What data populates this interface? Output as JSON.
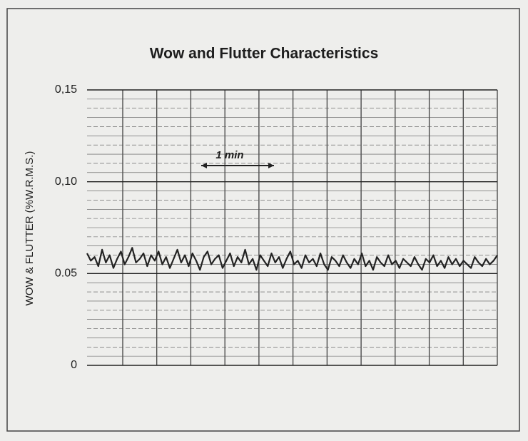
{
  "chart_data": {
    "type": "line",
    "title": "Wow and Flutter Characteristics",
    "y_label": "WOW & FLUTTER (%W.R.M.S.)",
    "annotation": "1 min",
    "color": "#222222",
    "ylim": [
      0,
      0.15
    ],
    "yticks": [
      0,
      {
        "value": 0.05,
        "label": "0.05"
      },
      {
        "value": 0.1,
        "label": "0,10"
      },
      {
        "value": 0.15,
        "label": "0,15"
      }
    ],
    "grid": true,
    "values": [
      0.061,
      0.057,
      0.059,
      0.054,
      0.063,
      0.056,
      0.06,
      0.053,
      0.058,
      0.062,
      0.055,
      0.059,
      0.064,
      0.056,
      0.058,
      0.061,
      0.054,
      0.06,
      0.057,
      0.062,
      0.055,
      0.059,
      0.053,
      0.058,
      0.063,
      0.056,
      0.06,
      0.054,
      0.061,
      0.057,
      0.052,
      0.059,
      0.062,
      0.055,
      0.058,
      0.06,
      0.053,
      0.057,
      0.061,
      0.054,
      0.059,
      0.056,
      0.063,
      0.055,
      0.058,
      0.052,
      0.06,
      0.057,
      0.054,
      0.061,
      0.056,
      0.059,
      0.053,
      0.058,
      0.062,
      0.055,
      0.057,
      0.053,
      0.06,
      0.056,
      0.058,
      0.054,
      0.061,
      0.055,
      0.052,
      0.059,
      0.057,
      0.054,
      0.06,
      0.056,
      0.053,
      0.058,
      0.055,
      0.061,
      0.054,
      0.057,
      0.052,
      0.059,
      0.056,
      0.054,
      0.06,
      0.055,
      0.057,
      0.053,
      0.058,
      0.056,
      0.054,
      0.059,
      0.055,
      0.052,
      0.058,
      0.056,
      0.06,
      0.054,
      0.057,
      0.053,
      0.059,
      0.055,
      0.058,
      0.054,
      0.057,
      0.055,
      0.053,
      0.059,
      0.056,
      0.054,
      0.058,
      0.055,
      0.057,
      0.06
    ]
  }
}
